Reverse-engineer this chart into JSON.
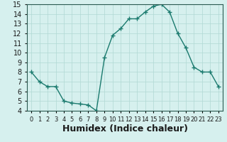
{
  "x": [
    0,
    1,
    2,
    3,
    4,
    5,
    6,
    7,
    8,
    9,
    10,
    11,
    12,
    13,
    14,
    15,
    16,
    17,
    18,
    19,
    20,
    21,
    22,
    23
  ],
  "y": [
    8.0,
    7.0,
    6.5,
    6.5,
    5.0,
    4.8,
    4.7,
    4.6,
    4.0,
    9.5,
    11.8,
    12.5,
    13.5,
    13.5,
    14.2,
    14.8,
    15.0,
    14.2,
    12.0,
    10.5,
    8.5,
    8.0,
    8.0,
    6.5
  ],
  "line_color": "#1a7a6e",
  "marker": "+",
  "marker_color": "#1a7a6e",
  "bg_color": "#d6f0ee",
  "grid_color": "#b0d8d4",
  "xlabel": "Humidex (Indice chaleur)",
  "xlabel_fontsize": 9,
  "ylim": [
    4,
    15
  ],
  "xlim": [
    -0.5,
    23.5
  ],
  "yticks": [
    4,
    5,
    6,
    7,
    8,
    9,
    10,
    11,
    12,
    13,
    14,
    15
  ],
  "xtick_labels": [
    "0",
    "1",
    "2",
    "3",
    "4",
    "5",
    "6",
    "7",
    "8",
    "9",
    "10",
    "11",
    "12",
    "13",
    "14",
    "15",
    "16",
    "17",
    "18",
    "19",
    "20",
    "21",
    "22",
    "23"
  ],
  "tick_fontsize": 7,
  "tick_color": "#1a1a1a",
  "spine_color": "#2a5a50"
}
